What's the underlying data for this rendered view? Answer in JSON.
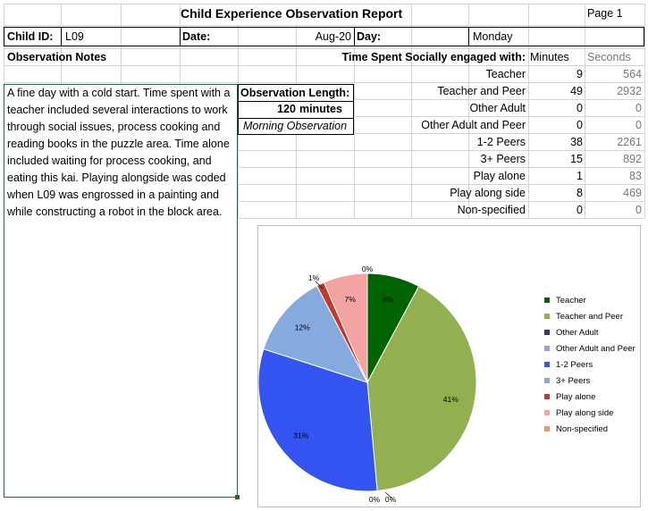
{
  "header": {
    "title": "Child Experience Observation Report",
    "page": "Page 1"
  },
  "info": {
    "child_id_label": "Child ID:",
    "child_id": "L09",
    "date_label": "Date:",
    "date": "Aug-20",
    "day_label": "Day:",
    "day": "Monday"
  },
  "notes": {
    "heading": "Observation Notes",
    "text": "A fine day with a cold start.  Time spent with a teacher included several interactions to work through social issues, process cooking and reading books in the puzzle area.  Time alone included waiting for process cooking, and eating this kai.  Playing alongside was coded when L09 was engrossed in a painting and while constructing a robot in the block area."
  },
  "observation": {
    "length_label": "Observation Length:",
    "length_value": "120",
    "length_unit": "minutes",
    "session": "Morning Observation"
  },
  "social": {
    "heading": "Time Spent Socially engaged with:",
    "minutes_header": "Minutes",
    "seconds_header": "Seconds",
    "rows": [
      {
        "label": "Teacher",
        "minutes": "9",
        "seconds": "564"
      },
      {
        "label": "Teacher and Peer",
        "minutes": "49",
        "seconds": "2932"
      },
      {
        "label": "Other Adult",
        "minutes": "0",
        "seconds": "0"
      },
      {
        "label": "Other Adult and Peer",
        "minutes": "0",
        "seconds": "0"
      },
      {
        "label": "1-2 Peers",
        "minutes": "38",
        "seconds": "2261"
      },
      {
        "label": "3+ Peers",
        "minutes": "15",
        "seconds": "892"
      },
      {
        "label": "Play alone",
        "minutes": "1",
        "seconds": "83"
      },
      {
        "label": "Play along side",
        "minutes": "8",
        "seconds": "469"
      },
      {
        "label": "Non-specified",
        "minutes": "0",
        "seconds": "0"
      }
    ]
  },
  "chart_data": {
    "type": "pie",
    "categories": [
      "Teacher",
      "Teacher and Peer",
      "Other Adult",
      "Other Adult and Peer",
      "1-2 Peers",
      "3+ Peers",
      "Play alone",
      "Play along side",
      "Non-specified"
    ],
    "values": [
      564,
      2932,
      0,
      0,
      2261,
      892,
      83,
      469,
      0
    ],
    "data_labels": [
      "8%",
      "41%",
      "0%",
      "0%",
      "31%",
      "12%",
      "1%",
      "7%",
      "0%"
    ],
    "colors": [
      "#006400",
      "#92b050",
      "#4b2f78",
      "#a99bd3",
      "#3354f0",
      "#86a9de",
      "#c0392b",
      "#f3a3a1",
      "#f49a5a"
    ],
    "legend_position": "right"
  }
}
